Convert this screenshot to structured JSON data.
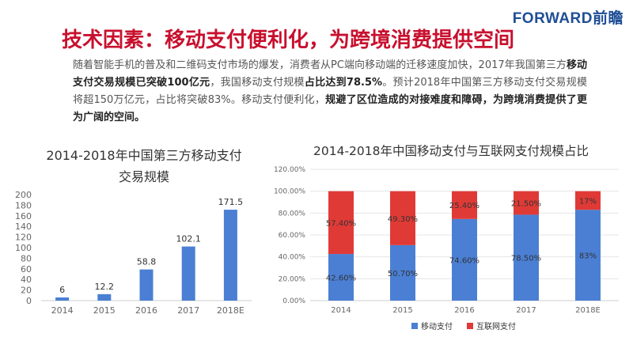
{
  "header": {
    "logo": "FORWARD前瞻",
    "title": "技术因素：移动支付便利化，为跨境消费提供空间"
  },
  "paragraph": {
    "p1": "随着智能手机的普及和二维码支付市场的爆发，消费者从PC端向移动端的迁移速度加快，2017年我国第三方",
    "b1": "移动支付交易规模已突破100亿元",
    "p2": "，我国移动支付规模",
    "b2": "占比达到78.5%",
    "p3": "。预计2018年中国第三方移动支付交易规模将超150万亿元，占比将突破83%。移动支付便利化，",
    "b3": "规避了区位造成的对接难度和障碍，为跨境消费提供了更为广阔的空间。"
  },
  "colors": {
    "title": "#c8102e",
    "logo": "#1f4e96",
    "bar_blue": "#4a7fd4",
    "bar_red": "#e03a36",
    "axis_text": "#666666"
  },
  "chart_data": [
    {
      "type": "bar",
      "title_line1": "2014-2018年中国第三方移动支付",
      "title_line2": "交易规模",
      "categories": [
        "2014",
        "2015",
        "2016",
        "2017",
        "2018E"
      ],
      "values": [
        6,
        12.2,
        58.8,
        102.1,
        171.5
      ],
      "value_labels": [
        "6",
        "12.2",
        "58.8",
        "102.1",
        "171.5"
      ],
      "ylim": [
        0,
        200
      ],
      "yticks": [
        0,
        20,
        40,
        60,
        80,
        100,
        120,
        140,
        160,
        180,
        200
      ],
      "ytick_labels": [
        "0",
        "20",
        "40",
        "60",
        "80",
        "100",
        "120",
        "140",
        "160",
        "180",
        "200"
      ],
      "grid": false,
      "color": "#4a7fd4"
    },
    {
      "type": "bar",
      "stacked": true,
      "title": "2014-2018年中国移动支付与互联网支付规模占比",
      "categories": [
        "2014",
        "2015",
        "2016",
        "2017",
        "2018E"
      ],
      "series": [
        {
          "name": "移动支付",
          "values": [
            42.6,
            50.7,
            74.6,
            78.5,
            83
          ],
          "labels": [
            "42.60%",
            "50.70%",
            "74.60%",
            "78.50%",
            "83%"
          ],
          "color": "#4a7fd4"
        },
        {
          "name": "互联网支付",
          "values": [
            57.4,
            49.3,
            25.4,
            21.5,
            17
          ],
          "labels": [
            "57.40%",
            "49.30%",
            "25.40%",
            "21.50%",
            "17%"
          ],
          "color": "#e03a36"
        }
      ],
      "ylim": [
        0,
        120
      ],
      "yticks": [
        0,
        20,
        40,
        60,
        80,
        100,
        120
      ],
      "ytick_labels": [
        "0.00%",
        "20.00%",
        "40.00%",
        "60.00%",
        "80.00%",
        "100.00%",
        "120.00%"
      ],
      "grid": true,
      "legend_position": "bottom"
    }
  ]
}
